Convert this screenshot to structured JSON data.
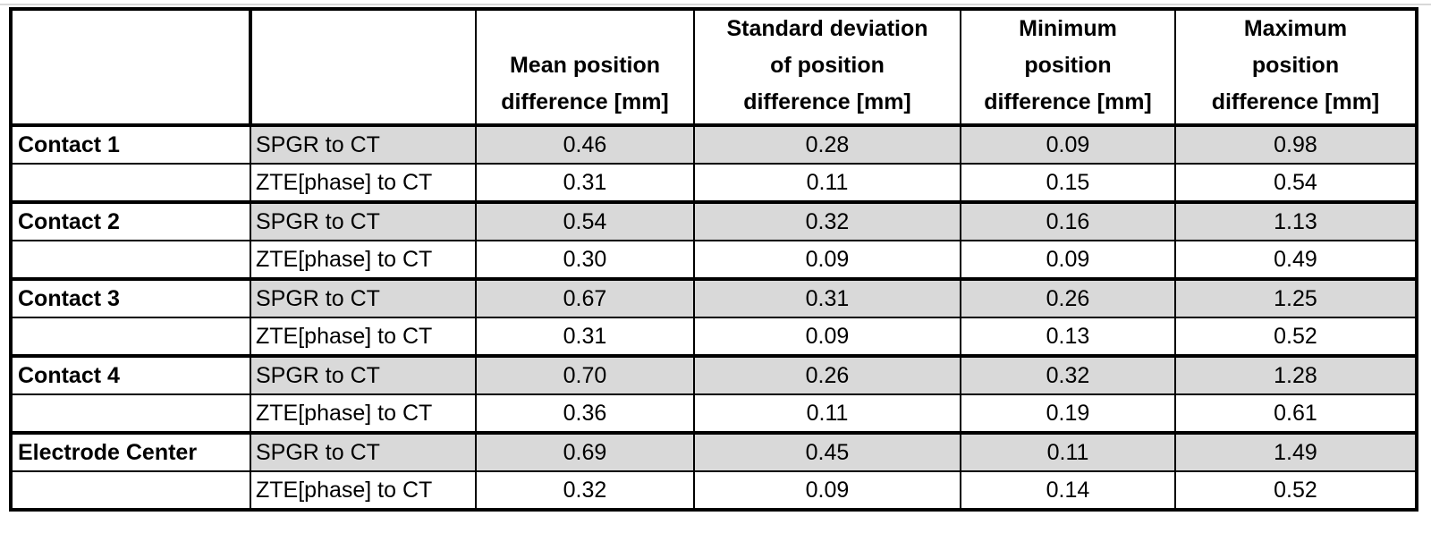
{
  "colors": {
    "shaded_row": "#d9d9d9",
    "grid_black": "#000000",
    "light_gridline": "#c8c8c8",
    "page_background": "#ffffff"
  },
  "header": {
    "row_label": "",
    "method": "",
    "mean": "Mean position\ndifference [mm]",
    "std": "Standard deviation\nof position\ndifference [mm]",
    "min": "Minimum\nposition\ndifference [mm]",
    "max": "Maximum\nposition\ndifference [mm]"
  },
  "groups": [
    {
      "label": "Contact 1",
      "rows": [
        {
          "method": "SPGR to CT",
          "values": [
            "0.46",
            "0.28",
            "0.09",
            "0.98"
          ]
        },
        {
          "method": "ZTE[phase] to CT",
          "values": [
            "0.31",
            "0.11",
            "0.15",
            "0.54"
          ]
        }
      ]
    },
    {
      "label": "Contact 2",
      "rows": [
        {
          "method": "SPGR to CT",
          "values": [
            "0.54",
            "0.32",
            "0.16",
            "1.13"
          ]
        },
        {
          "method": "ZTE[phase] to CT",
          "values": [
            "0.30",
            "0.09",
            "0.09",
            "0.49"
          ]
        }
      ]
    },
    {
      "label": "Contact 3",
      "rows": [
        {
          "method": "SPGR to CT",
          "values": [
            "0.67",
            "0.31",
            "0.26",
            "1.25"
          ]
        },
        {
          "method": "ZTE[phase] to CT",
          "values": [
            "0.31",
            "0.09",
            "0.13",
            "0.52"
          ]
        }
      ]
    },
    {
      "label": "Contact 4",
      "rows": [
        {
          "method": "SPGR to CT",
          "values": [
            "0.70",
            "0.26",
            "0.32",
            "1.28"
          ]
        },
        {
          "method": "ZTE[phase] to CT",
          "values": [
            "0.36",
            "0.11",
            "0.19",
            "0.61"
          ]
        }
      ]
    },
    {
      "label": "Electrode Center",
      "rows": [
        {
          "method": "SPGR to CT",
          "values": [
            "0.69",
            "0.45",
            "0.11",
            "1.49"
          ]
        },
        {
          "method": "ZTE[phase] to CT",
          "values": [
            "0.32",
            "0.09",
            "0.14",
            "0.52"
          ]
        }
      ]
    }
  ]
}
